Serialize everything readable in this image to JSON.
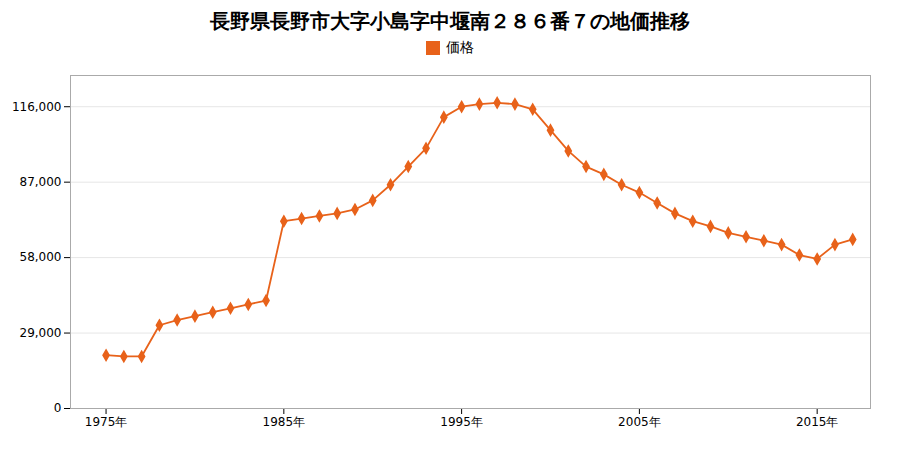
{
  "chart_data": {
    "type": "line",
    "title": "長野県長野市大字小島字中堰南２８６番７の地価推移",
    "x": [
      1975,
      1976,
      1977,
      1978,
      1979,
      1980,
      1981,
      1982,
      1983,
      1984,
      1985,
      1986,
      1987,
      1988,
      1989,
      1990,
      1991,
      1992,
      1993,
      1994,
      1995,
      1996,
      1997,
      1998,
      1999,
      2000,
      2001,
      2002,
      2003,
      2004,
      2005,
      2006,
      2007,
      2008,
      2009,
      2010,
      2011,
      2012,
      2013,
      2014,
      2015,
      2016,
      2017
    ],
    "series": [
      {
        "name": "価格",
        "color": "#e8621a",
        "marker": "diamond",
        "values": [
          20500,
          20000,
          20000,
          32000,
          34000,
          35500,
          37000,
          38500,
          40000,
          41500,
          72000,
          73000,
          74000,
          75000,
          76500,
          80000,
          86000,
          93000,
          100000,
          112000,
          116000,
          117000,
          117500,
          117000,
          115000,
          107000,
          99000,
          93000,
          90000,
          86000,
          83000,
          79000,
          75000,
          72000,
          70000,
          67500,
          66000,
          64500,
          63000,
          59000,
          57500,
          63000,
          65000
        ]
      }
    ],
    "xlim": [
      1973,
      2018
    ],
    "xticks": [
      {
        "value": 1975,
        "label": "1975年"
      },
      {
        "value": 1985,
        "label": "1985年"
      },
      {
        "value": 1995,
        "label": "1995年"
      },
      {
        "value": 2005,
        "label": "2005年"
      },
      {
        "value": 2015,
        "label": "2015年"
      }
    ],
    "ylim": [
      0,
      128000
    ],
    "yticks": [
      0,
      {
        "value": 29000,
        "label": "29,000"
      },
      {
        "value": 58000,
        "label": "58,000"
      },
      {
        "value": 87000,
        "label": "87,000"
      },
      {
        "value": 116000,
        "label": "116,000"
      }
    ],
    "grid": "y",
    "legend": "top"
  }
}
